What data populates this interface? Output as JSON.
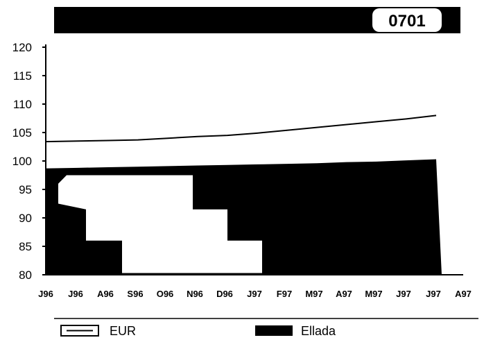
{
  "header": {
    "code": "0701"
  },
  "colors": {
    "ink": "#000000",
    "paper": "#ffffff"
  },
  "chart_data": {
    "type": "area",
    "title": "",
    "categories": [
      "J96",
      "J96",
      "A96",
      "S96",
      "O96",
      "N96",
      "D96",
      "J97",
      "F97",
      "M97",
      "A97",
      "M97",
      "J97",
      "J97",
      "A97"
    ],
    "ylim": [
      80,
      120
    ],
    "yticks": [
      80,
      85,
      90,
      95,
      100,
      105,
      110,
      115,
      120
    ],
    "series": [
      {
        "name": "EUR",
        "type": "line",
        "values": [
          103.4,
          103.5,
          103.6,
          103.7,
          104.0,
          104.3,
          104.5,
          104.9,
          105.4,
          105.9,
          106.4,
          106.9,
          107.4,
          108.0,
          null
        ]
      },
      {
        "name": "Ellada",
        "type": "area",
        "values": [
          98.7,
          98.8,
          98.9,
          99.0,
          99.1,
          99.2,
          99.3,
          99.4,
          99.5,
          99.6,
          99.8,
          99.9,
          100.1,
          100.3,
          null
        ]
      }
    ],
    "legend": [
      "EUR",
      "Ellada"
    ],
    "legend_position": "bottom"
  }
}
